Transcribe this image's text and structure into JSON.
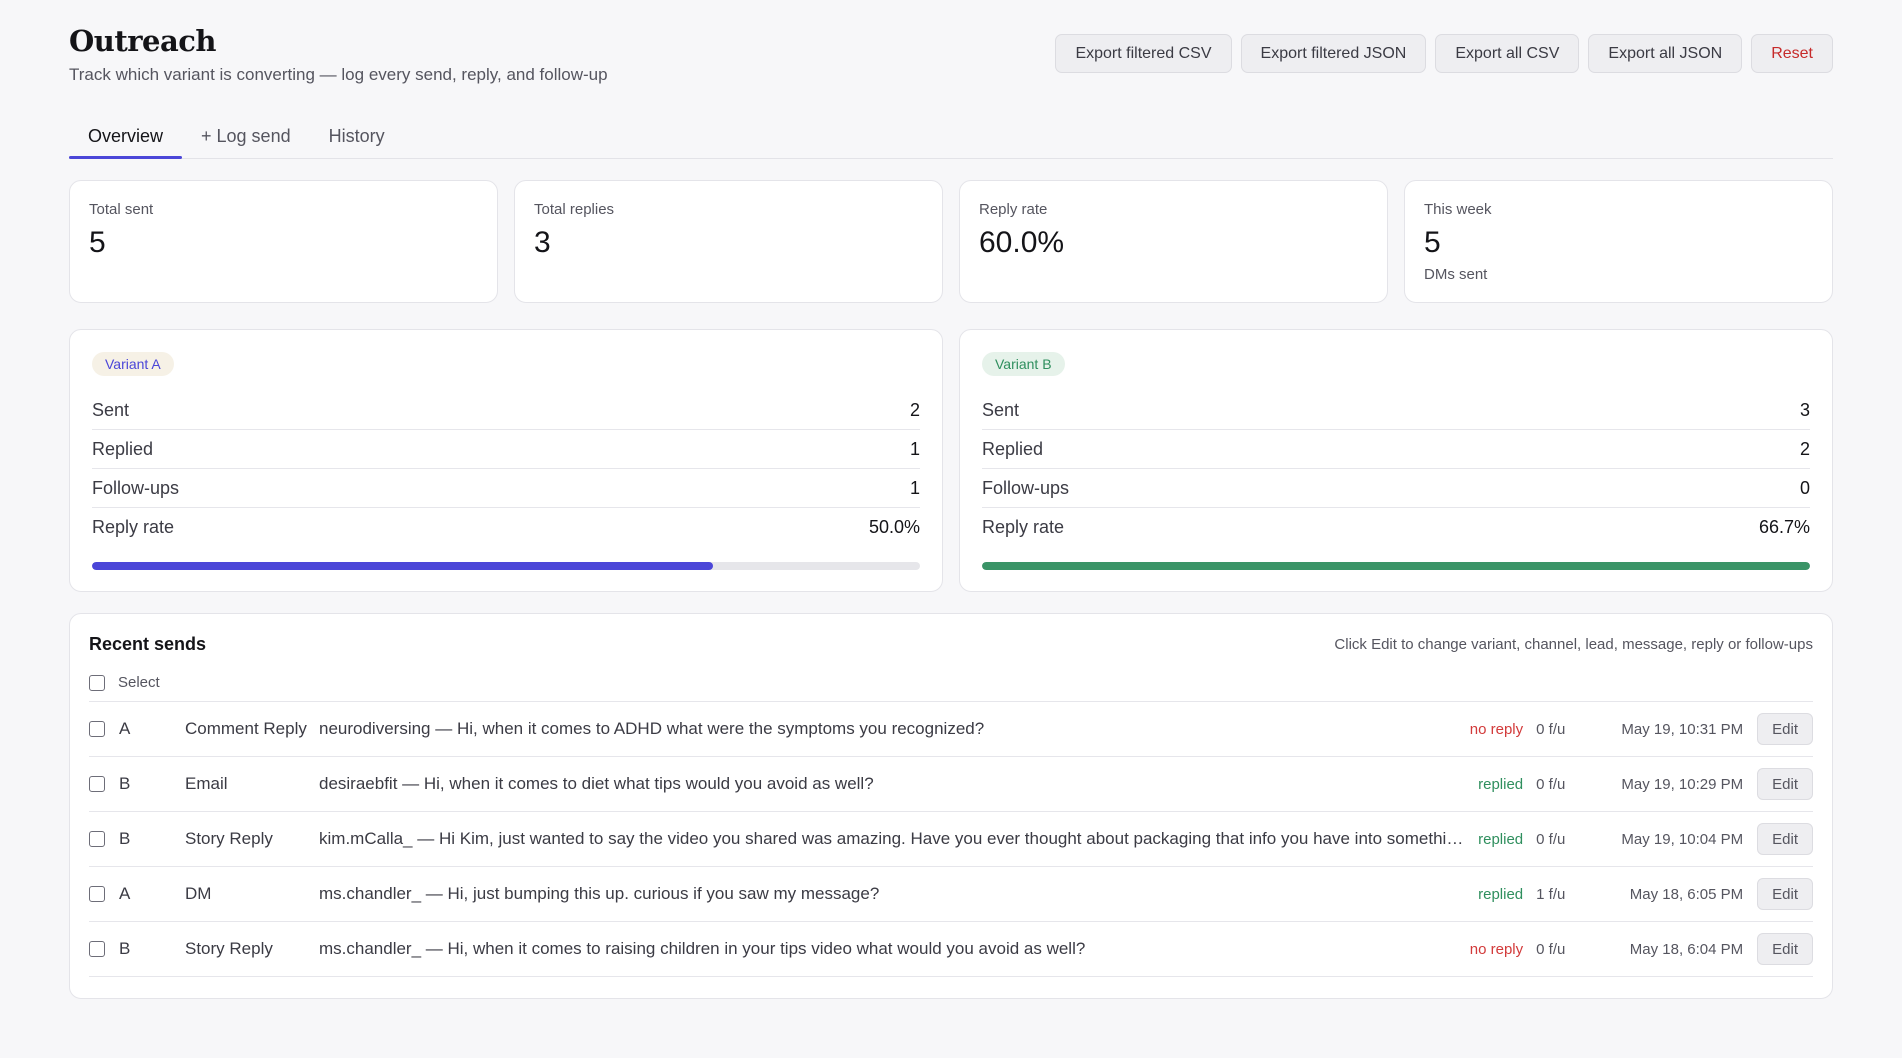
{
  "header": {
    "title": "Outreach",
    "subtitle": "Track which variant is converting — log every send, reply, and follow-up",
    "actions": [
      "Export filtered CSV",
      "Export filtered JSON",
      "Export all CSV",
      "Export all JSON",
      "Reset"
    ]
  },
  "tabs": [
    "Overview",
    "+ Log send",
    "History"
  ],
  "active_tab": "Overview",
  "stats": [
    {
      "label": "Total sent",
      "value": "5",
      "sub": ""
    },
    {
      "label": "Total replies",
      "value": "3",
      "sub": ""
    },
    {
      "label": "Reply rate",
      "value": "60.0%",
      "sub": ""
    },
    {
      "label": "This week",
      "value": "5",
      "sub": "DMs sent"
    }
  ],
  "variants": [
    {
      "label": "Variant A",
      "rows": [
        {
          "label": "Sent",
          "value": "2"
        },
        {
          "label": "Replied",
          "value": "1"
        },
        {
          "label": "Follow-ups",
          "value": "1"
        },
        {
          "label": "Reply rate",
          "value": "50.0%"
        }
      ],
      "progress_percent": 75,
      "color": "#4b46d8"
    },
    {
      "label": "Variant B",
      "rows": [
        {
          "label": "Sent",
          "value": "3"
        },
        {
          "label": "Replied",
          "value": "2"
        },
        {
          "label": "Follow-ups",
          "value": "0"
        },
        {
          "label": "Reply rate",
          "value": "66.7%"
        }
      ],
      "progress_percent": 100,
      "color": "#3a9467"
    }
  ],
  "recent": {
    "title": "Recent sends",
    "hint": "Click Edit to change variant, channel, lead, message, reply or follow-ups",
    "select_label": "Select",
    "edit_label": "Edit",
    "rows": [
      {
        "variant": "A",
        "channel": "Comment Reply",
        "message": "neurodiversing — Hi, when it comes to ADHD what were the symptoms you recognized?",
        "status": "no reply",
        "replied": false,
        "followups": "0 f/u",
        "date": "May 19, 10:31 PM"
      },
      {
        "variant": "B",
        "channel": "Email",
        "message": "desiraebfit — Hi, when it comes to diet what tips would you avoid as well?",
        "status": "replied",
        "replied": true,
        "followups": "0 f/u",
        "date": "May 19, 10:29 PM"
      },
      {
        "variant": "B",
        "channel": "Story Reply",
        "message": "kim.mCalla_ — Hi Kim, just wanted to say the video you shared was amazing. Have you ever thought about packaging that info you have into something pe…",
        "status": "replied",
        "replied": true,
        "followups": "0 f/u",
        "date": "May 19, 10:04 PM"
      },
      {
        "variant": "A",
        "channel": "DM",
        "message": "ms.chandler_ — Hi, just bumping this up. curious if you saw my message?",
        "status": "replied",
        "replied": true,
        "followups": "1 f/u",
        "date": "May 18, 6:05 PM"
      },
      {
        "variant": "B",
        "channel": "Story Reply",
        "message": "ms.chandler_ — Hi, when it comes to raising children in your tips video what would you avoid as well?",
        "status": "no reply",
        "replied": false,
        "followups": "0 f/u",
        "date": "May 18, 6:04 PM"
      }
    ]
  }
}
